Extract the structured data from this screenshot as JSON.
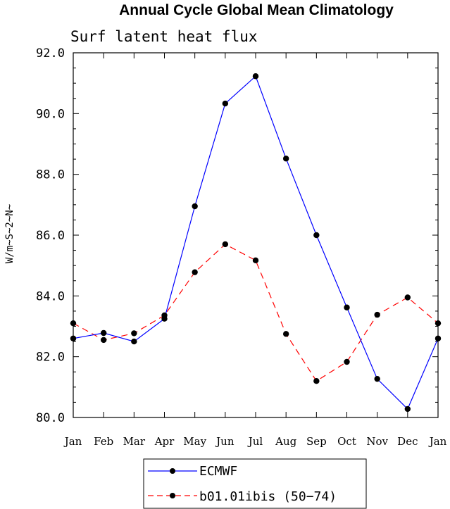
{
  "chart_data": {
    "type": "line",
    "title": "Annual Cycle Global Mean Climatology",
    "subtitle": "Surf latent heat flux",
    "ylabel": "W/m~S~2~N~",
    "xlabel": "",
    "ylim": [
      80.0,
      92.0
    ],
    "yticks": [
      "80.0",
      "82.0",
      "84.0",
      "86.0",
      "88.0",
      "90.0",
      "92.0"
    ],
    "categories": [
      "Jan",
      "Feb",
      "Mar",
      "Apr",
      "May",
      "Jun",
      "Jul",
      "Aug",
      "Sep",
      "Oct",
      "Nov",
      "Dec",
      "Jan"
    ],
    "series": [
      {
        "name": "ECMWF",
        "color": "#0000ff",
        "dash": "solid",
        "values": [
          82.6,
          82.78,
          82.5,
          83.25,
          86.95,
          90.33,
          91.23,
          88.52,
          86.0,
          83.62,
          81.27,
          80.28,
          82.6
        ]
      },
      {
        "name": "b01.01ibis (50−74)",
        "color": "#ff0000",
        "dash": "dashed",
        "values": [
          83.1,
          82.55,
          82.77,
          83.36,
          84.78,
          85.7,
          85.17,
          82.75,
          81.2,
          81.83,
          83.38,
          83.95,
          83.1
        ]
      }
    ],
    "legend_position": "bottom-center",
    "grid": false
  }
}
